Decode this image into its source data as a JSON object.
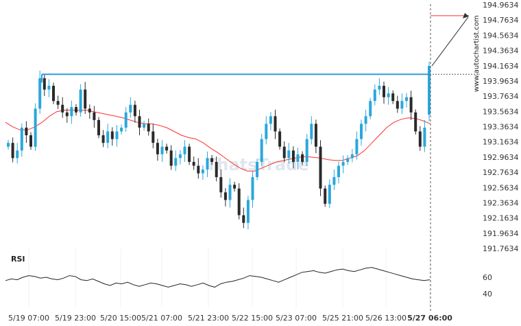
{
  "watermark": {
    "site": "www.autochartist.com",
    "logo": "ThatsTrade"
  },
  "rsi_panel": {
    "title": "RSI",
    "ticks": [
      "60",
      "40"
    ]
  },
  "colors": {
    "bull": "#2aa7dc",
    "bear": "#2a2a2a",
    "ma": "#ff2d2d",
    "resistance": "#2e9bdb",
    "target": "#ff2d2d",
    "rsi": "#222222"
  },
  "chart_data": {
    "type": "candlestick",
    "y_axis_ticks": [
      "194.9634",
      "194.7634",
      "194.5634",
      "194.3634",
      "194.1634",
      "193.9634",
      "193.7634",
      "193.5634",
      "193.3634",
      "193.1634",
      "192.9634",
      "192.7634",
      "192.5634",
      "192.3634",
      "192.1634",
      "191.9634",
      "191.7634"
    ],
    "x_axis_ticks": [
      "5/19 07:00",
      "5/19 23:00",
      "5/20 15:00",
      "5/21 07:00",
      "5/21 23:00",
      "5/22 15:00",
      "5/23 07:00",
      "5/25 21:00",
      "5/26 13:00",
      "5/27 06:00"
    ],
    "ylim": [
      191.7634,
      194.9634
    ],
    "resistance_level": 194.05,
    "breakout_close": 194.16,
    "target_level": 194.82,
    "close_series": [
      193.15,
      192.95,
      193.05,
      193.35,
      193.25,
      193.1,
      193.6,
      194.0,
      193.85,
      193.9,
      193.7,
      193.65,
      193.55,
      193.5,
      193.62,
      193.55,
      193.85,
      193.6,
      193.55,
      193.45,
      193.25,
      193.15,
      193.3,
      193.2,
      193.3,
      193.35,
      193.55,
      193.65,
      193.5,
      193.35,
      193.4,
      193.3,
      193.15,
      193.0,
      193.1,
      193.05,
      192.85,
      192.95,
      193.0,
      193.1,
      192.9,
      192.85,
      192.75,
      192.8,
      192.95,
      192.9,
      192.7,
      192.5,
      192.4,
      192.6,
      192.55,
      192.2,
      192.1,
      192.4,
      192.7,
      192.9,
      193.2,
      193.4,
      193.5,
      193.3,
      193.1,
      192.95,
      193.05,
      192.9,
      193.0,
      192.9,
      193.2,
      193.4,
      193.1,
      192.55,
      192.35,
      192.6,
      192.7,
      192.85,
      192.9,
      192.95,
      193.0,
      193.2,
      193.4,
      193.5,
      193.7,
      193.85,
      193.9,
      193.75,
      193.8,
      193.7,
      193.6,
      193.7,
      193.75,
      193.55,
      193.3,
      193.1,
      193.35,
      194.16
    ],
    "ma_series": [
      193.42,
      193.36,
      193.32,
      193.32,
      193.36,
      193.42,
      193.5,
      193.56,
      193.58,
      193.58,
      193.58,
      193.58,
      193.56,
      193.54,
      193.52,
      193.5,
      193.48,
      193.45,
      193.42,
      193.4,
      193.4,
      193.38,
      193.35,
      193.3,
      193.25,
      193.22,
      193.2,
      193.15,
      193.08,
      193.02,
      192.95,
      192.88,
      192.82,
      192.78,
      192.78,
      192.82,
      192.86,
      192.9,
      192.92,
      192.94,
      192.96,
      192.97,
      192.96,
      192.95,
      192.93,
      192.92,
      192.92,
      192.95,
      192.98,
      193.05,
      193.15,
      193.25,
      193.35,
      193.42,
      193.46,
      193.48,
      193.47,
      193.44,
      193.4
    ],
    "rsi_series": [
      56,
      58,
      57,
      60,
      62,
      61,
      59,
      60,
      58,
      57,
      59,
      62,
      61,
      57,
      56,
      58,
      55,
      52,
      50,
      53,
      52,
      54,
      51,
      49,
      51,
      53,
      52,
      50,
      48,
      50,
      52,
      51,
      49,
      51,
      53,
      50,
      48,
      52,
      54,
      55,
      57,
      59,
      62,
      61,
      60,
      58,
      56,
      54,
      57,
      60,
      63,
      66,
      67,
      68,
      66,
      65,
      67,
      69,
      70,
      68,
      67,
      69,
      71,
      72,
      70,
      68,
      66,
      64,
      62,
      60,
      58,
      57,
      56,
      57
    ],
    "rsi_ticks": [
      "60",
      "40"
    ],
    "rsi_range": [
      30,
      80
    ]
  }
}
